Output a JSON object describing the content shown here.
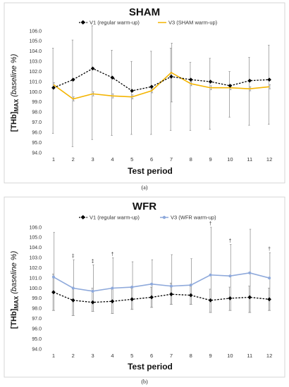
{
  "chart_data": [
    {
      "type": "line",
      "panel_id": "a",
      "title": "SHAM",
      "caption": "(a)",
      "xlabel": "Test period",
      "ylabel": {
        "prefix": "[THb]",
        "subscript": "MAX",
        "suffix": " (baseline %)"
      },
      "ylim": [
        94.0,
        106.0
      ],
      "yticks": [
        "94.0",
        "95.0",
        "96.0",
        "97.0",
        "98.0",
        "99.0",
        "100.0",
        "101.0",
        "102.0",
        "103.0",
        "104.0",
        "105.0",
        "106.0"
      ],
      "categories": [
        "1",
        "2",
        "3",
        "4",
        "5",
        "6",
        "7",
        "8",
        "9",
        "10",
        "11",
        "12"
      ],
      "legend_position": "top",
      "series": [
        {
          "name": "V1 (regular warm-up)",
          "color": "#000000",
          "style": "dashed-diamond",
          "values": [
            100.4,
            101.2,
            102.3,
            101.4,
            100.1,
            100.5,
            101.5,
            101.2,
            101.0,
            100.6,
            101.1,
            101.2
          ],
          "err_high": [
            104.3,
            105.1,
            106.5,
            104.1,
            103.0,
            104.0,
            104.3,
            102.9,
            103.3,
            102.0,
            103.4,
            104.6
          ],
          "err_low": [
            95.9,
            94.6,
            95.3,
            95.7,
            95.8,
            95.8,
            96.2,
            96.2,
            96.3,
            97.5,
            96.7,
            96.8
          ]
        },
        {
          "name": "V3 (SHAM warm-up)",
          "color": "#f4b400",
          "style": "solid",
          "values": [
            100.7,
            99.3,
            99.8,
            99.6,
            99.5,
            100.1,
            101.9,
            100.8,
            100.4,
            100.4,
            100.3,
            100.5
          ],
          "err_high": [
            100.9,
            99.5,
            100.0,
            99.8,
            99.7,
            100.3,
            104.8,
            101.0,
            100.6,
            100.6,
            100.5,
            100.7
          ],
          "err_low": [
            100.5,
            99.1,
            99.6,
            99.4,
            99.3,
            99.9,
            99.0,
            100.6,
            100.2,
            100.2,
            100.1,
            100.3
          ]
        }
      ],
      "annotations": []
    },
    {
      "type": "line",
      "panel_id": "b",
      "title": "WFR",
      "caption": "(b)",
      "xlabel": "Test period",
      "ylabel": {
        "prefix": "[THb]",
        "subscript": "MAX",
        "suffix": " (baseline %)"
      },
      "ylim": [
        94.0,
        106.0
      ],
      "yticks": [
        "94.0",
        "95.0",
        "96.0",
        "97.0",
        "98.0",
        "99.0",
        "100.0",
        "101.0",
        "102.0",
        "103.0",
        "104.0",
        "105.0",
        "106.0"
      ],
      "categories": [
        "1",
        "2",
        "3",
        "4",
        "5",
        "6",
        "7",
        "8",
        "9",
        "10",
        "11",
        "12"
      ],
      "legend_position": "top",
      "series": [
        {
          "name": "V1 (regular warm-up)",
          "color": "#000000",
          "style": "dashed-diamond",
          "values": [
            99.6,
            98.8,
            98.6,
            98.7,
            98.9,
            99.1,
            99.4,
            99.3,
            98.8,
            99.0,
            99.1,
            98.9
          ],
          "err_high": [
            101.4,
            100.1,
            100.0,
            99.9,
            100.0,
            100.1,
            100.5,
            100.2,
            99.9,
            100.1,
            100.2,
            100.0
          ],
          "err_low": [
            97.8,
            97.3,
            97.7,
            97.5,
            97.9,
            98.1,
            98.4,
            98.4,
            97.6,
            97.8,
            97.6,
            97.8
          ]
        },
        {
          "name": "V3 (WFR warm-up)",
          "color": "#8ea9db",
          "style": "solid-circle",
          "values": [
            101.1,
            100.0,
            99.7,
            100.0,
            100.1,
            100.4,
            100.2,
            100.3,
            101.3,
            101.2,
            101.5,
            101.0
          ],
          "err_high": [
            105.5,
            102.8,
            102.3,
            103.0,
            102.6,
            102.8,
            103.3,
            102.9,
            106.0,
            104.3,
            105.8,
            103.5
          ],
          "err_low": [
            97.8,
            97.3,
            97.7,
            97.5,
            97.9,
            98.1,
            98.4,
            98.4,
            97.6,
            97.8,
            97.6,
            97.8
          ]
        }
      ],
      "annotations": [
        {
          "x": "2",
          "text": "‡"
        },
        {
          "x": "3",
          "text": "‡"
        },
        {
          "x": "4",
          "text": "†"
        },
        {
          "x": "9",
          "text": "†"
        },
        {
          "x": "10",
          "text": "†"
        },
        {
          "x": "12",
          "text": "†"
        }
      ]
    }
  ]
}
